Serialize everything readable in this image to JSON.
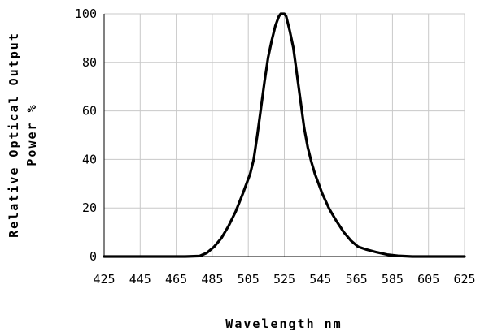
{
  "chart_data": {
    "type": "line",
    "title": "",
    "xlabel": "Wavelength  nm",
    "ylabel_lines": [
      "Relative Optical Output",
      "Power %"
    ],
    "xlim": [
      425,
      625
    ],
    "ylim": [
      0,
      100
    ],
    "grid": true,
    "x_ticks": [
      425,
      445,
      465,
      485,
      505,
      525,
      545,
      565,
      585,
      605,
      625
    ],
    "y_ticks": [
      0,
      20,
      40,
      60,
      80,
      100
    ],
    "series": [
      {
        "x": [
          425,
          440,
          455,
          470,
          478,
          482,
          486,
          490,
          494,
          498,
          502,
          506,
          508,
          510,
          512,
          514,
          516,
          518,
          520,
          522,
          523,
          524,
          525,
          526,
          528,
          530,
          532,
          534,
          536,
          538,
          540,
          542,
          546,
          550,
          554,
          558,
          562,
          566,
          570,
          576,
          582,
          588,
          596,
          605,
          615,
          625
        ],
        "y": [
          0,
          0,
          0,
          0,
          0.2,
          1.5,
          4,
          7.5,
          12.5,
          18.5,
          26,
          34,
          40,
          50,
          61,
          72,
          82,
          89,
          95,
          99,
          100,
          100,
          100,
          99,
          93,
          86,
          75,
          64,
          53,
          45,
          39,
          34,
          26,
          19.5,
          14.5,
          10,
          6.5,
          4,
          3,
          1.8,
          0.8,
          0.3,
          0,
          0,
          0,
          0
        ]
      }
    ]
  }
}
